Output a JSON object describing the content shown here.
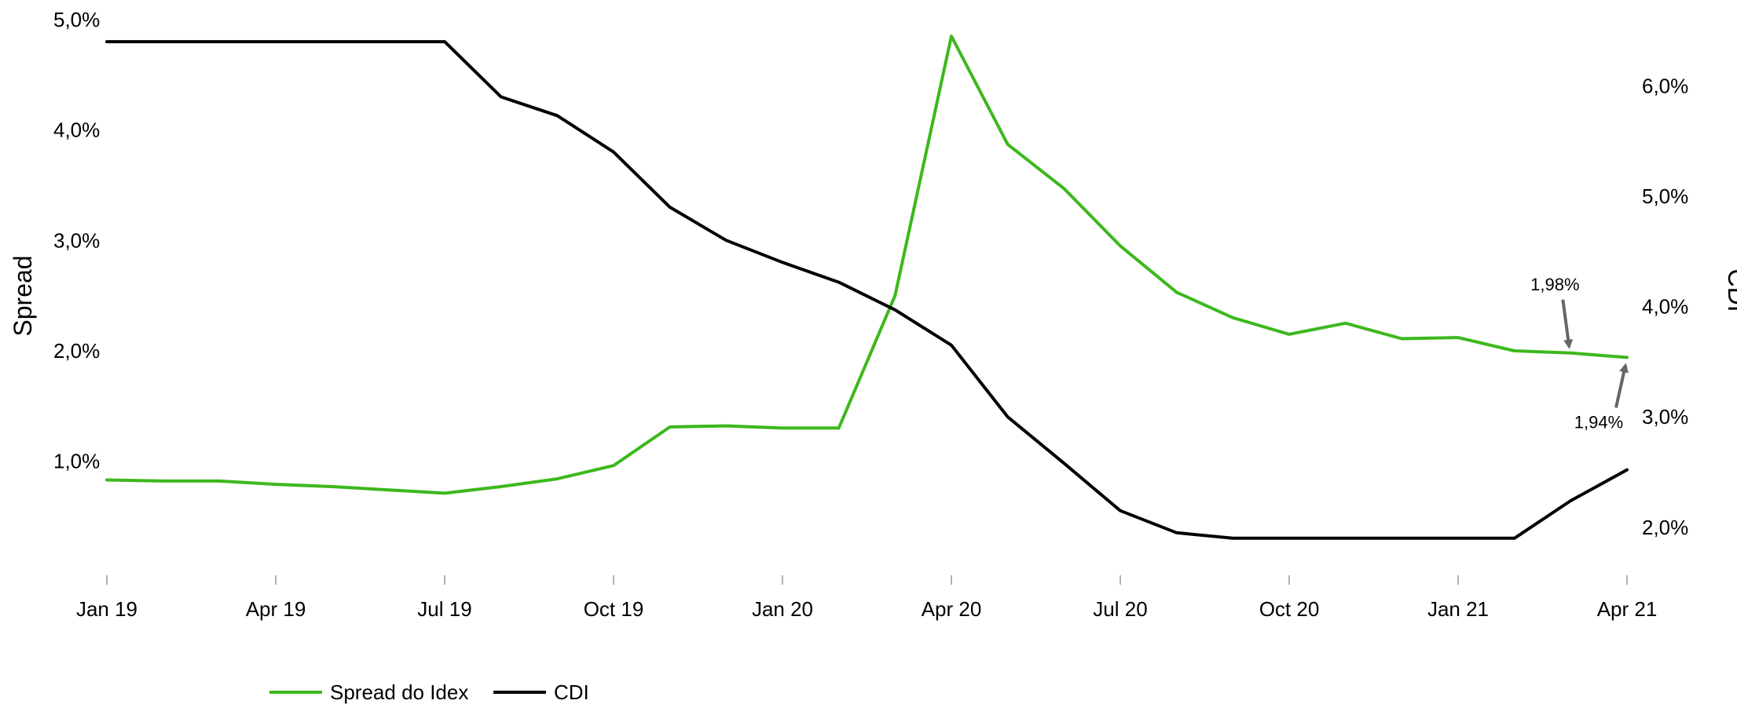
{
  "chart_data": {
    "type": "line",
    "title": "",
    "x_ticks": [
      "Jan 19",
      "Apr 19",
      "Jul 19",
      "Oct 19",
      "Jan 20",
      "Apr 20",
      "Jul 20",
      "Oct 20",
      "Jan 21",
      "Apr 21"
    ],
    "x": [
      "Jan 19",
      "Feb 19",
      "Mar 19",
      "Apr 19",
      "May 19",
      "Jun 19",
      "Jul 19",
      "Aug 19",
      "Sep 19",
      "Oct 19",
      "Nov 19",
      "Dec 19",
      "Jan 20",
      "Feb 20",
      "Mar 20",
      "Apr 20",
      "May 20",
      "Jun 20",
      "Jul 20",
      "Aug 20",
      "Sep 20",
      "Oct 20",
      "Nov 20",
      "Dec 20",
      "Jan 21",
      "Feb 21",
      "Mar 21",
      "Apr 21"
    ],
    "ylabel_left": "Spread",
    "ylabel_right": "CDI",
    "y_left_ticks": [
      "1,0%",
      "2,0%",
      "3,0%",
      "4,0%",
      "5,0%"
    ],
    "y_left_tick_values": [
      1.0,
      2.0,
      3.0,
      4.0,
      5.0
    ],
    "y_right_ticks": [
      "2,0%",
      "3,0%",
      "4,0%",
      "5,0%",
      "6,0%"
    ],
    "y_right_tick_values": [
      2.0,
      3.0,
      4.0,
      5.0,
      6.0
    ],
    "ylim_left": [
      0.4,
      5.0
    ],
    "ylim_right": [
      1.6,
      6.6
    ],
    "series": [
      {
        "name": "Spread do Idex",
        "axis": "left",
        "color": "#3db81d",
        "values": [
          0.83,
          0.82,
          0.82,
          0.79,
          0.77,
          0.74,
          0.71,
          0.77,
          0.84,
          0.96,
          1.31,
          1.32,
          1.3,
          1.3,
          2.5,
          4.85,
          3.87,
          3.47,
          2.95,
          2.53,
          2.3,
          2.15,
          2.25,
          2.11,
          2.12,
          2.0,
          1.98,
          1.94
        ]
      },
      {
        "name": "CDI",
        "axis": "right",
        "color": "#000000",
        "values": [
          6.4,
          6.4,
          6.4,
          6.4,
          6.4,
          6.4,
          6.4,
          5.9,
          5.73,
          5.4,
          4.9,
          4.6,
          4.4,
          4.22,
          3.97,
          3.65,
          3.0,
          2.58,
          2.15,
          1.95,
          1.9,
          1.9,
          1.9,
          1.9,
          1.9,
          1.9,
          2.24,
          2.52
        ]
      }
    ],
    "annotations": [
      {
        "text": "1,98%",
        "x": "Mar 21",
        "value": 1.98,
        "axis": "left"
      },
      {
        "text": "1,94%",
        "x": "Apr 21",
        "value": 1.94,
        "axis": "left"
      }
    ],
    "legend": {
      "placement": "bottom-left"
    },
    "grid": false
  }
}
